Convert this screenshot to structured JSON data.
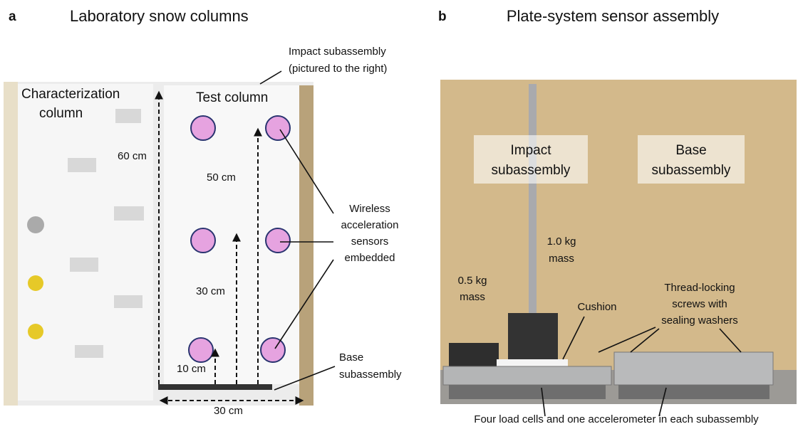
{
  "panel_a": {
    "label": "a",
    "title": "Laboratory snow columns",
    "impact_note": [
      "Impact subassembly",
      "(pictured to the right)"
    ],
    "characterization": [
      "Characterization",
      "column"
    ],
    "test_column": "Test column",
    "dim_60": "60 cm",
    "dim_50": "50 cm",
    "dim_30_vertical": "30 cm",
    "dim_10": "10 cm",
    "dim_30_horizontal": "30 cm",
    "sensors_note": [
      "Wireless",
      "acceleration",
      "sensors",
      "embedded"
    ],
    "base_note": [
      "Base",
      "subassembly"
    ]
  },
  "panel_b": {
    "label": "b",
    "title": "Plate-system sensor assembly",
    "impact_box": [
      "Impact",
      "subassembly"
    ],
    "base_box": [
      "Base",
      "subassembly"
    ],
    "mass_1": [
      "1.0 kg",
      "mass"
    ],
    "mass_05": [
      "0.5 kg",
      "mass"
    ],
    "cushion": "Cushion",
    "screws": [
      "Thread-locking",
      "screws with",
      "sealing washers"
    ],
    "footer": "Four load cells and one accelerometer in each subassembly"
  }
}
